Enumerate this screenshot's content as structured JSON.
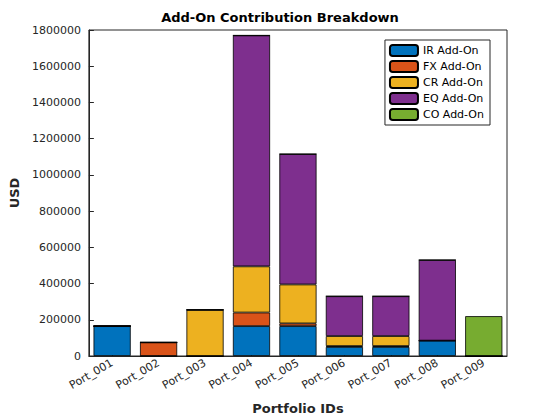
{
  "chart_data": {
    "type": "bar",
    "title": "Add-On Contribution Breakdown",
    "x_label": "Portfolio IDs",
    "y_label": "USD",
    "categories": [
      "Port_001",
      "Port_002",
      "Port_003",
      "Port_004",
      "Port_005",
      "Port_006",
      "Port_007",
      "Port_008",
      "Port_009"
    ],
    "series": [
      {
        "name": "IR Add-On",
        "color": "#0072BD",
        "values": [
          165000,
          0,
          0,
          165000,
          165000,
          50000,
          50000,
          85000,
          0
        ]
      },
      {
        "name": "FX Add-On",
        "color": "#D95319",
        "values": [
          0,
          75000,
          0,
          75000,
          15000,
          5000,
          5000,
          0,
          0
        ]
      },
      {
        "name": "CR Add-On",
        "color": "#EDB120",
        "values": [
          0,
          0,
          255000,
          255000,
          215000,
          55000,
          55000,
          0,
          0
        ]
      },
      {
        "name": "EQ Add-On",
        "color": "#7E2F8E",
        "values": [
          0,
          0,
          0,
          1275000,
          720000,
          220000,
          220000,
          445000,
          0
        ]
      },
      {
        "name": "CO Add-On",
        "color": "#77AC30",
        "values": [
          0,
          0,
          0,
          0,
          0,
          0,
          0,
          0,
          220000
        ]
      }
    ],
    "stacked": true,
    "legend": "upper right",
    "grid": false,
    "ylim": [
      0,
      1800000
    ],
    "yticks": [
      0,
      200000,
      400000,
      600000,
      800000,
      1000000,
      1200000,
      1400000,
      1600000,
      1800000
    ]
  }
}
